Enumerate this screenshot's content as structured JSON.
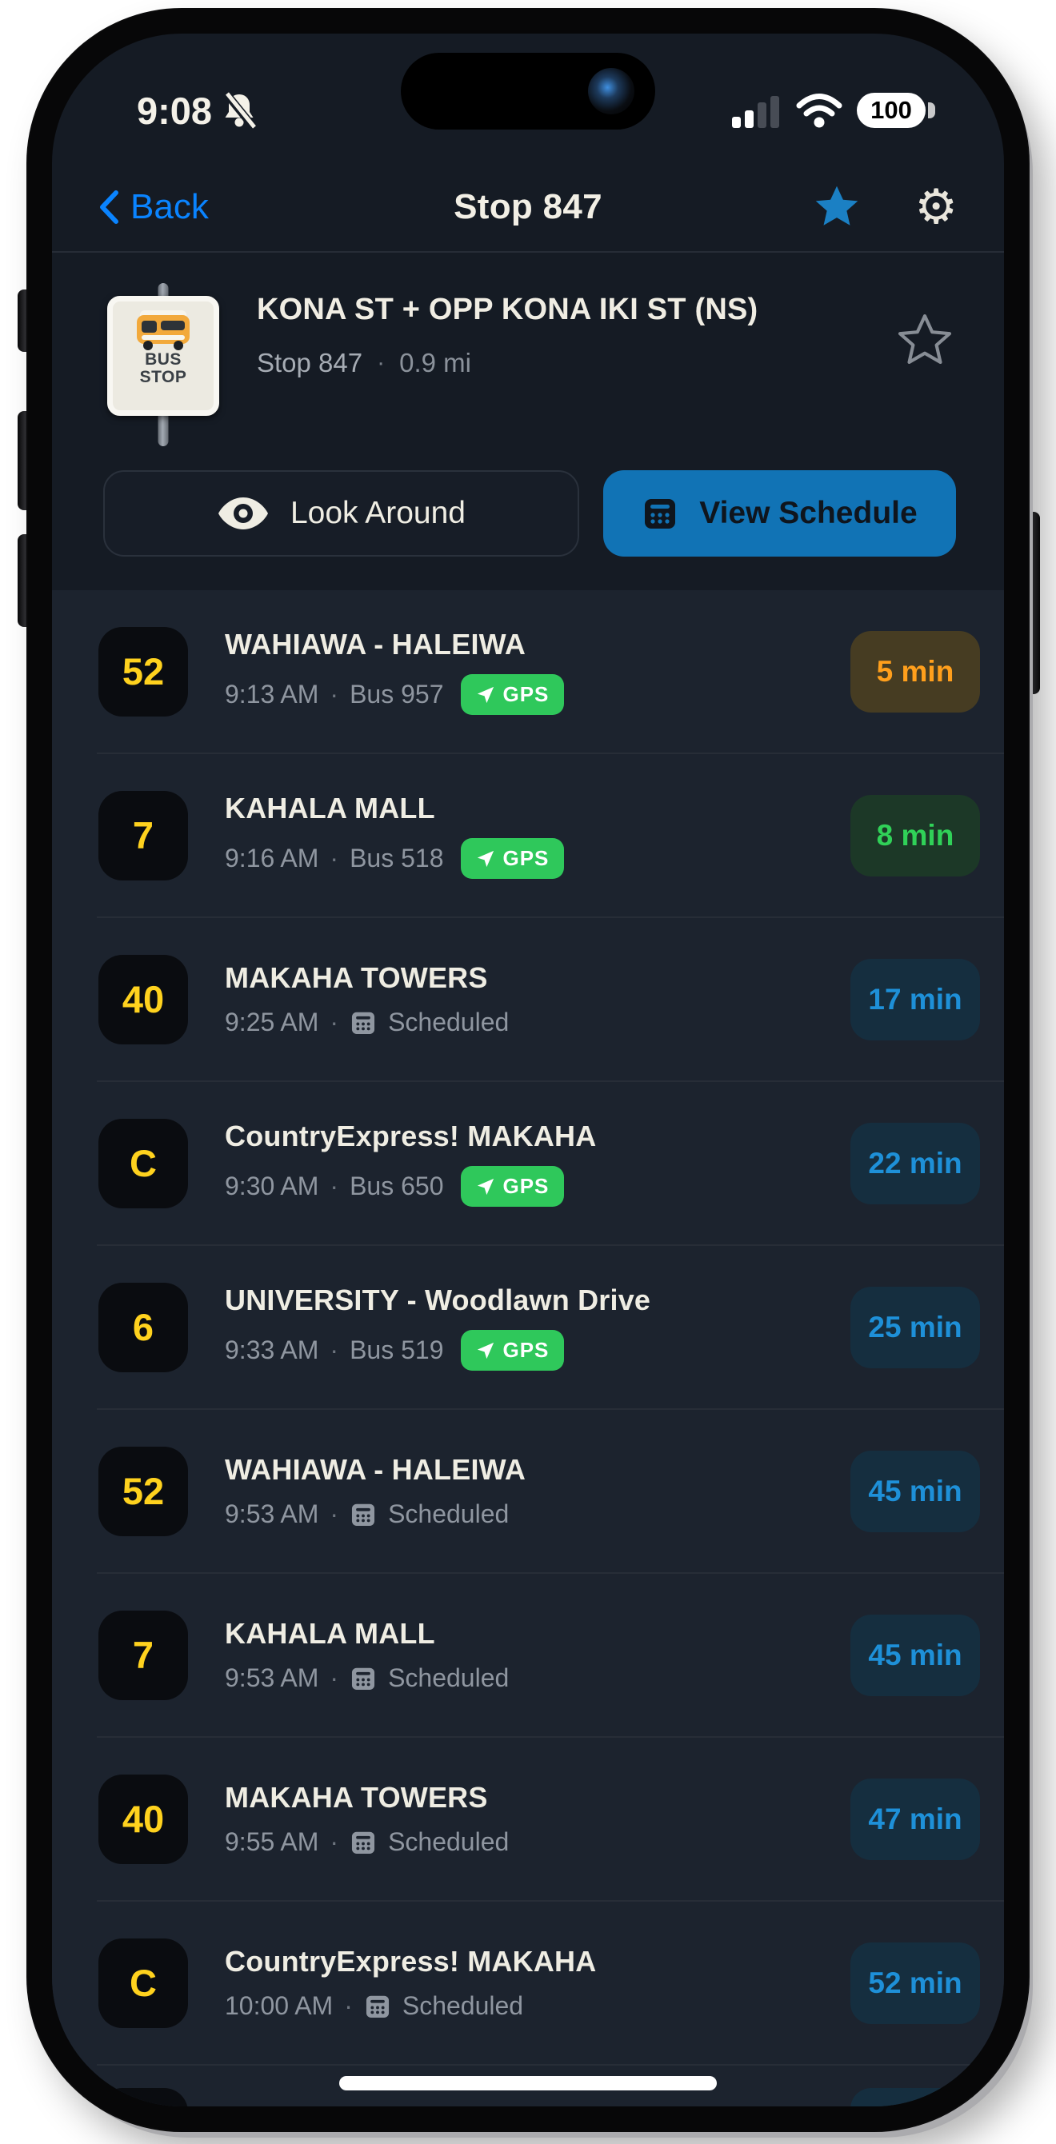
{
  "status_bar": {
    "time": "9:08",
    "battery_percent": "100"
  },
  "nav": {
    "back_label": "Back",
    "title": "Stop 847"
  },
  "stop": {
    "title": "KONA ST + OPP KONA IKI ST (NS)",
    "stop_label": "Stop 847",
    "distance": "0.9 mi",
    "sign_line1": "BUS",
    "sign_line2": "STOP"
  },
  "actions": {
    "look_around": "Look Around",
    "view_schedule": "View Schedule"
  },
  "separator": "·",
  "gps_label": "GPS",
  "icons": {
    "gear": "⚙"
  },
  "colors": {
    "accent_blue": "#0A84FF",
    "button_blue": "#1173B5",
    "gps_green": "#2FC85B",
    "route_yellow": "#FFD21E",
    "eta_orange_text": "#FF9F1C",
    "eta_green_text": "#30D158",
    "eta_blue_text": "#1E90D8",
    "header_bg": "#151B24",
    "list_bg": "#1C232E"
  },
  "departures": [
    {
      "route": "52",
      "name": "WAHIAWA - HALEIWA",
      "time": "9:13 AM",
      "source": "Bus 957",
      "gps": true,
      "eta": "5 min",
      "eta_style": "orange"
    },
    {
      "route": "7",
      "name": "KAHALA MALL",
      "time": "9:16 AM",
      "source": "Bus 518",
      "gps": true,
      "eta": "8 min",
      "eta_style": "green"
    },
    {
      "route": "40",
      "name": "MAKAHA TOWERS",
      "time": "9:25 AM",
      "source": "Scheduled",
      "gps": false,
      "eta": "17 min",
      "eta_style": "blue"
    },
    {
      "route": "C",
      "name": "CountryExpress! MAKAHA",
      "time": "9:30 AM",
      "source": "Bus 650",
      "gps": true,
      "eta": "22 min",
      "eta_style": "blue"
    },
    {
      "route": "6",
      "name": "UNIVERSITY - Woodlawn Drive",
      "time": "9:33 AM",
      "source": "Bus 519",
      "gps": true,
      "eta": "25 min",
      "eta_style": "blue"
    },
    {
      "route": "52",
      "name": "WAHIAWA - HALEIWA",
      "time": "9:53 AM",
      "source": "Scheduled",
      "gps": false,
      "eta": "45 min",
      "eta_style": "blue"
    },
    {
      "route": "7",
      "name": "KAHALA MALL",
      "time": "9:53 AM",
      "source": "Scheduled",
      "gps": false,
      "eta": "45 min",
      "eta_style": "blue"
    },
    {
      "route": "40",
      "name": "MAKAHA TOWERS",
      "time": "9:55 AM",
      "source": "Scheduled",
      "gps": false,
      "eta": "47 min",
      "eta_style": "blue"
    },
    {
      "route": "C",
      "name": "CountryExpress! MAKAHA",
      "time": "10:00 AM",
      "source": "Scheduled",
      "gps": false,
      "eta": "52 min",
      "eta_style": "blue"
    }
  ]
}
